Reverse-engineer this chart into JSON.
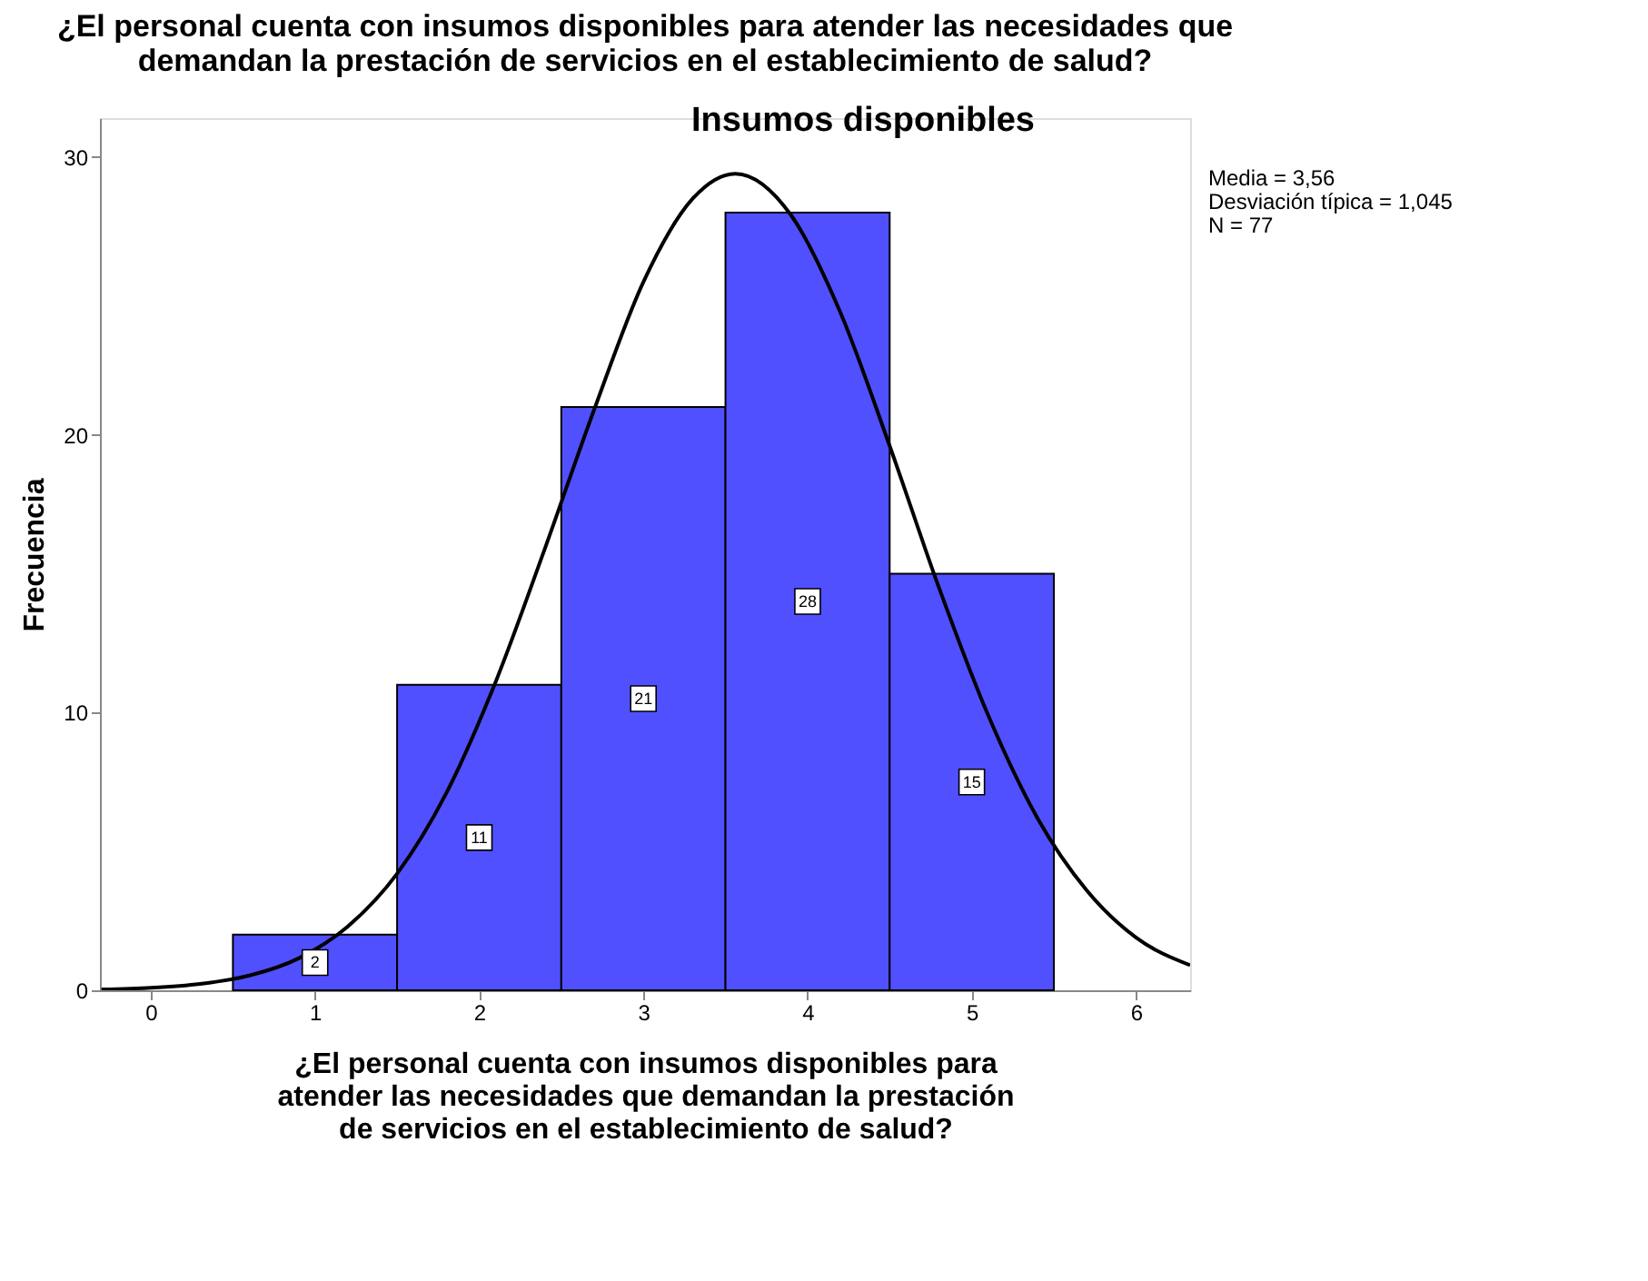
{
  "chart_data": {
    "type": "histogram",
    "title": [
      "¿El personal cuenta con insumos disponibles para atender las necesidades que",
      "demandan la prestación de servicios en el establecimiento de salud?"
    ],
    "subtitle": "Insumos disponibles",
    "xlabel": [
      "¿El personal cuenta con insumos disponibles para",
      "atender las necesidades que demandan la prestación",
      "de servicios en el establecimiento de salud?"
    ],
    "ylabel": "Frecuencia",
    "bins": [
      0.5,
      1.5,
      2.5,
      3.5,
      4.5,
      5.5
    ],
    "values": [
      2,
      11,
      21,
      28,
      15
    ],
    "color": "#5050ff",
    "value_labels": [
      "2",
      "11",
      "21",
      "28",
      "15"
    ],
    "series": [
      {
        "type": "line",
        "color": "#000000",
        "x": [
          -0.3,
          0,
          0.3,
          0.6,
          0.9,
          1.2,
          1.5,
          1.8,
          2.1,
          2.4,
          2.7,
          3.0,
          3.3,
          3.56,
          3.9,
          4.2,
          4.5,
          4.8,
          5.1,
          5.4,
          5.7,
          6.0,
          6.33
        ],
        "values": [
          0.03,
          0.09,
          0.23,
          0.53,
          1.15,
          2.3,
          4.2,
          7.1,
          11.1,
          15.9,
          20.9,
          25.5,
          28.5,
          29.4,
          27.9,
          24.4,
          19.6,
          14.5,
          9.9,
          6.2,
          3.6,
          1.9,
          0.9
        ]
      }
    ],
    "xlim": [
      -0.31,
      6.33
    ],
    "xticks": [
      0,
      1,
      2,
      3,
      4,
      5,
      6
    ],
    "ylim": [
      0,
      31.4
    ],
    "yticks": [
      0,
      10,
      20,
      30
    ],
    "grid": false,
    "annotations": [
      "Media = 3,56",
      "Desviación típica = 1,045",
      "N = 77"
    ]
  }
}
